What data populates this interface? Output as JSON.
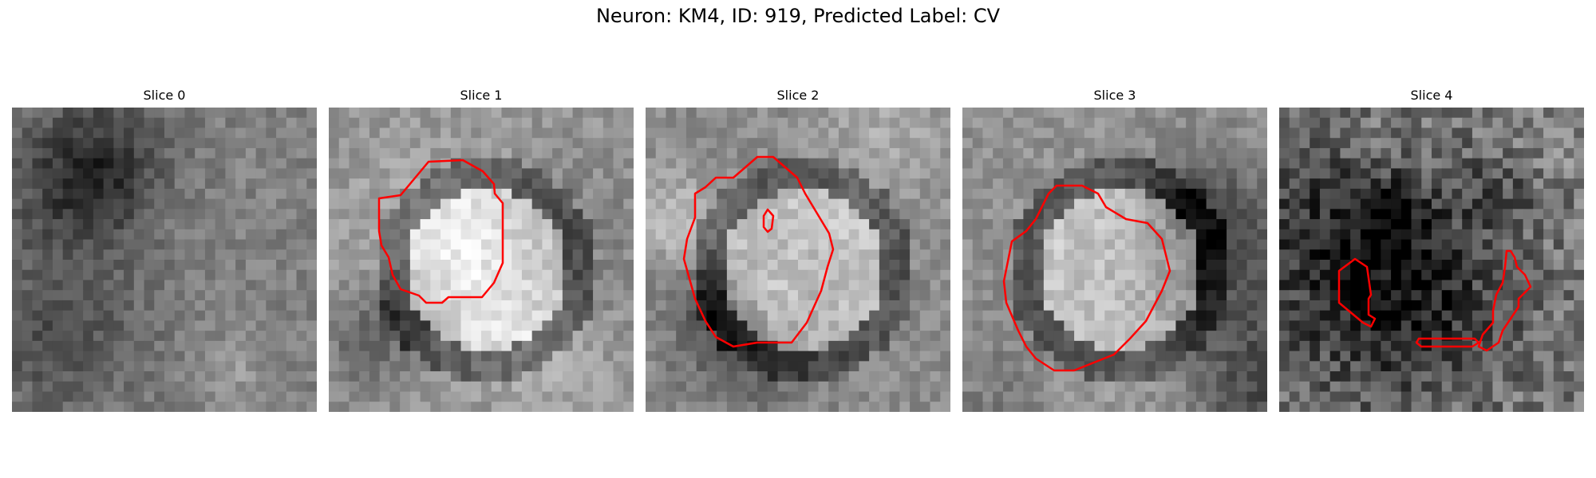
{
  "figure": {
    "title": "Neuron: KM4, ID: 919, Predicted Label: CV"
  },
  "panels": [
    {
      "title": "Slice 0",
      "seed": 11,
      "base": 130,
      "contrast": 55,
      "has_contour": false
    },
    {
      "title": "Slice 1",
      "seed": 23,
      "base": 150,
      "contrast": 60,
      "has_contour": true
    },
    {
      "title": "Slice 2",
      "seed": 37,
      "base": 140,
      "contrast": 60,
      "has_contour": true
    },
    {
      "title": "Slice 3",
      "seed": 41,
      "base": 145,
      "contrast": 60,
      "has_contour": true
    },
    {
      "title": "Slice 4",
      "seed": 53,
      "base": 120,
      "contrast": 70,
      "has_contour": true
    }
  ],
  "colors": {
    "contour": "#ff0000",
    "background": "#ffffff"
  }
}
